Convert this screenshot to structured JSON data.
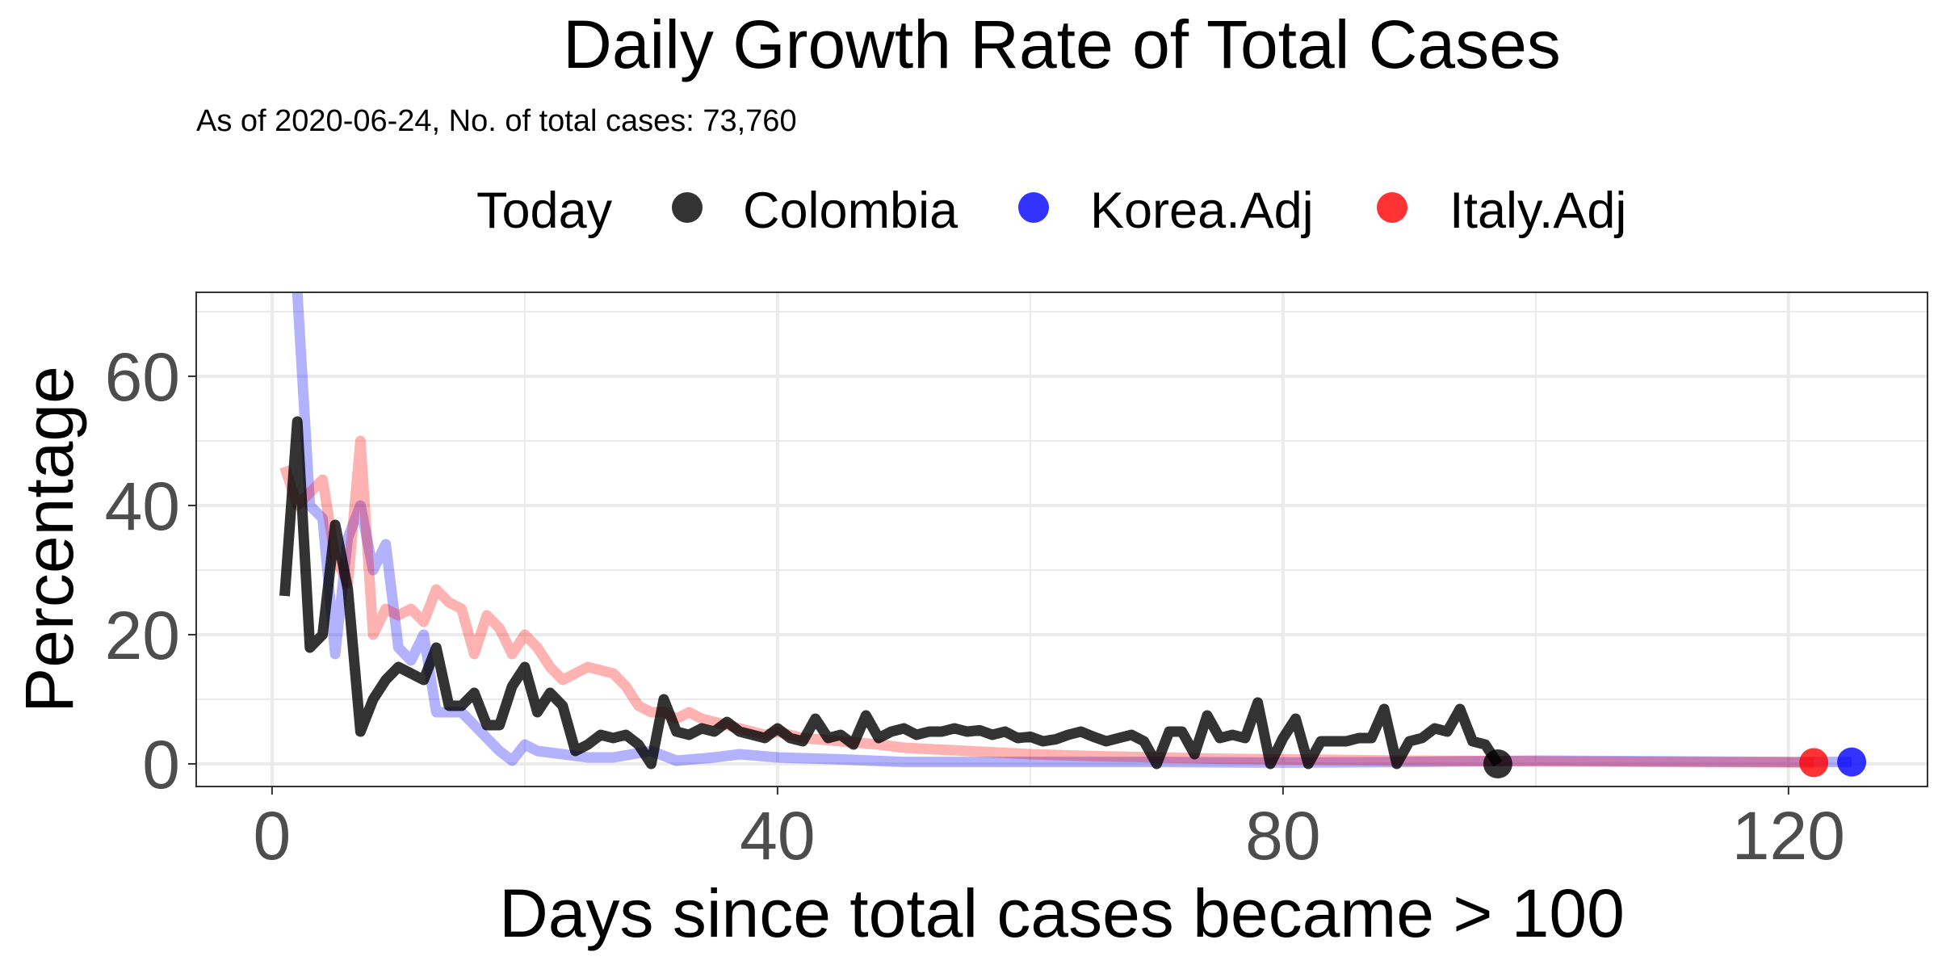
{
  "chart_data": {
    "type": "line",
    "title": "Daily Growth Rate of Total Cases",
    "subtitle": "As of 2020-06-24, No. of total cases: 73,760",
    "xlabel": "Days since total cases became > 100",
    "ylabel": "Percentage",
    "xlim": [
      -6,
      131
    ],
    "ylim": [
      -3.5,
      73
    ],
    "x_ticks": [
      0,
      40,
      80,
      120
    ],
    "x_tick_labels": [
      "0",
      "40",
      "80",
      "120"
    ],
    "y_ticks": [
      0,
      20,
      40,
      60
    ],
    "y_tick_labels": [
      "0",
      "20",
      "40",
      "60"
    ],
    "grid": true,
    "legend": {
      "position": "top",
      "title": "Today",
      "entries": [
        {
          "label": "Colombia",
          "color": "#000000"
        },
        {
          "label": "Korea.Adj",
          "color": "#0000ff"
        },
        {
          "label": "Italy.Adj",
          "color": "#ff0000"
        }
      ]
    },
    "series": [
      {
        "name": "Korea.Adj",
        "color": "#0000ff",
        "opacity": 0.3,
        "points": [
          [
            2,
            73
          ],
          [
            3,
            40
          ],
          [
            4,
            38
          ],
          [
            5,
            17
          ],
          [
            6,
            35
          ],
          [
            7,
            40
          ],
          [
            8,
            30
          ],
          [
            9,
            34
          ],
          [
            10,
            18
          ],
          [
            11,
            16
          ],
          [
            12,
            20
          ],
          [
            13,
            8
          ],
          [
            14,
            8
          ],
          [
            15,
            8
          ],
          [
            16,
            6
          ],
          [
            17,
            4
          ],
          [
            18,
            2
          ],
          [
            19,
            0.5
          ],
          [
            20,
            3
          ],
          [
            21,
            2
          ],
          [
            23,
            1.5
          ],
          [
            25,
            1
          ],
          [
            27,
            1
          ],
          [
            30,
            2
          ],
          [
            32,
            0.5
          ],
          [
            35,
            1
          ],
          [
            37,
            1.5
          ],
          [
            40,
            1
          ],
          [
            45,
            0.7
          ],
          [
            50,
            0.3
          ],
          [
            60,
            0.3
          ],
          [
            70,
            0.3
          ],
          [
            80,
            0.2
          ],
          [
            90,
            0.3
          ],
          [
            100,
            0.5
          ],
          [
            110,
            0.4
          ],
          [
            120,
            0.3
          ],
          [
            125,
            0.3
          ]
        ]
      },
      {
        "name": "Italy.Adj",
        "color": "#ff0000",
        "opacity": 0.3,
        "points": [
          [
            1,
            46
          ],
          [
            2,
            40
          ],
          [
            3,
            42
          ],
          [
            4,
            44
          ],
          [
            5,
            32
          ],
          [
            6,
            28
          ],
          [
            7,
            50
          ],
          [
            8,
            20
          ],
          [
            9,
            24
          ],
          [
            10,
            23
          ],
          [
            11,
            24
          ],
          [
            12,
            22
          ],
          [
            13,
            27
          ],
          [
            14,
            25
          ],
          [
            15,
            24
          ],
          [
            16,
            17
          ],
          [
            17,
            23
          ],
          [
            18,
            21
          ],
          [
            19,
            17
          ],
          [
            20,
            20
          ],
          [
            21,
            18
          ],
          [
            22,
            15
          ],
          [
            23,
            13
          ],
          [
            24,
            14
          ],
          [
            25,
            15
          ],
          [
            26,
            14.5
          ],
          [
            27,
            14
          ],
          [
            28,
            12
          ],
          [
            29,
            9
          ],
          [
            30,
            8
          ],
          [
            31,
            8
          ],
          [
            32,
            7
          ],
          [
            33,
            8
          ],
          [
            34,
            7
          ],
          [
            35,
            6.5
          ],
          [
            36,
            6
          ],
          [
            37,
            5.5
          ],
          [
            38,
            5
          ],
          [
            39,
            4.5
          ],
          [
            40,
            5
          ],
          [
            42,
            4
          ],
          [
            45,
            3.5
          ],
          [
            48,
            3
          ],
          [
            50,
            2.5
          ],
          [
            55,
            2
          ],
          [
            60,
            1.5
          ],
          [
            65,
            1.2
          ],
          [
            70,
            1
          ],
          [
            75,
            0.8
          ],
          [
            80,
            0.7
          ],
          [
            90,
            0.5
          ],
          [
            100,
            0.4
          ],
          [
            110,
            0.3
          ],
          [
            122,
            0.2
          ]
        ]
      },
      {
        "name": "Colombia",
        "color": "#000000",
        "opacity": 0.8,
        "points": [
          [
            1,
            26
          ],
          [
            2,
            53
          ],
          [
            3,
            18
          ],
          [
            4,
            20
          ],
          [
            5,
            37
          ],
          [
            6,
            27
          ],
          [
            7,
            5
          ],
          [
            8,
            10
          ],
          [
            9,
            13
          ],
          [
            10,
            15
          ],
          [
            11,
            14
          ],
          [
            12,
            13
          ],
          [
            13,
            18
          ],
          [
            14,
            9
          ],
          [
            15,
            9
          ],
          [
            16,
            11
          ],
          [
            17,
            6
          ],
          [
            18,
            6
          ],
          [
            19,
            12
          ],
          [
            20,
            15
          ],
          [
            21,
            8
          ],
          [
            22,
            11
          ],
          [
            23,
            9
          ],
          [
            24,
            2
          ],
          [
            25,
            3
          ],
          [
            26,
            4.5
          ],
          [
            27,
            4
          ],
          [
            28,
            4.5
          ],
          [
            29,
            3
          ],
          [
            30,
            0
          ],
          [
            31,
            10
          ],
          [
            32,
            5
          ],
          [
            33,
            4.5
          ],
          [
            34,
            5.5
          ],
          [
            35,
            5
          ],
          [
            36,
            6.5
          ],
          [
            37,
            5
          ],
          [
            38,
            4.5
          ],
          [
            39,
            4
          ],
          [
            40,
            5.5
          ],
          [
            41,
            4
          ],
          [
            42,
            3.5
          ],
          [
            43,
            7
          ],
          [
            44,
            4
          ],
          [
            45,
            4.5
          ],
          [
            46,
            3
          ],
          [
            47,
            7.5
          ],
          [
            48,
            4
          ],
          [
            49,
            5
          ],
          [
            50,
            5.5
          ],
          [
            51,
            4.5
          ],
          [
            52,
            5
          ],
          [
            53,
            5
          ],
          [
            54,
            5.5
          ],
          [
            55,
            5
          ],
          [
            56,
            5.2
          ],
          [
            57,
            4.5
          ],
          [
            58,
            5
          ],
          [
            59,
            4
          ],
          [
            60,
            4.2
          ],
          [
            61,
            3.5
          ],
          [
            62,
            3.8
          ],
          [
            63,
            4.5
          ],
          [
            64,
            5
          ],
          [
            65,
            4.2
          ],
          [
            66,
            3.5
          ],
          [
            67,
            4
          ],
          [
            68,
            4.5
          ],
          [
            69,
            3.5
          ],
          [
            70,
            0
          ],
          [
            71,
            5
          ],
          [
            72,
            5
          ],
          [
            73,
            1.5
          ],
          [
            74,
            7.5
          ],
          [
            75,
            4
          ],
          [
            76,
            4.5
          ],
          [
            77,
            4
          ],
          [
            78,
            9.5
          ],
          [
            79,
            0
          ],
          [
            80,
            4
          ],
          [
            81,
            7
          ],
          [
            82,
            0
          ],
          [
            83,
            3.5
          ],
          [
            84,
            3.5
          ],
          [
            85,
            3.5
          ],
          [
            86,
            4
          ],
          [
            87,
            4
          ],
          [
            88,
            8.5
          ],
          [
            89,
            0
          ],
          [
            90,
            3.5
          ],
          [
            91,
            4
          ],
          [
            92,
            5.5
          ],
          [
            93,
            5
          ],
          [
            94,
            8.5
          ],
          [
            95,
            3.5
          ],
          [
            96,
            3
          ],
          [
            97,
            0
          ]
        ]
      }
    ],
    "today_markers": [
      {
        "name": "Colombia",
        "x": 97,
        "y": 0,
        "color": "#000000"
      },
      {
        "name": "Italy.Adj",
        "x": 122,
        "y": 0.2,
        "color": "#ff0000"
      },
      {
        "name": "Korea.Adj",
        "x": 125,
        "y": 0.3,
        "color": "#0000ff"
      }
    ]
  }
}
